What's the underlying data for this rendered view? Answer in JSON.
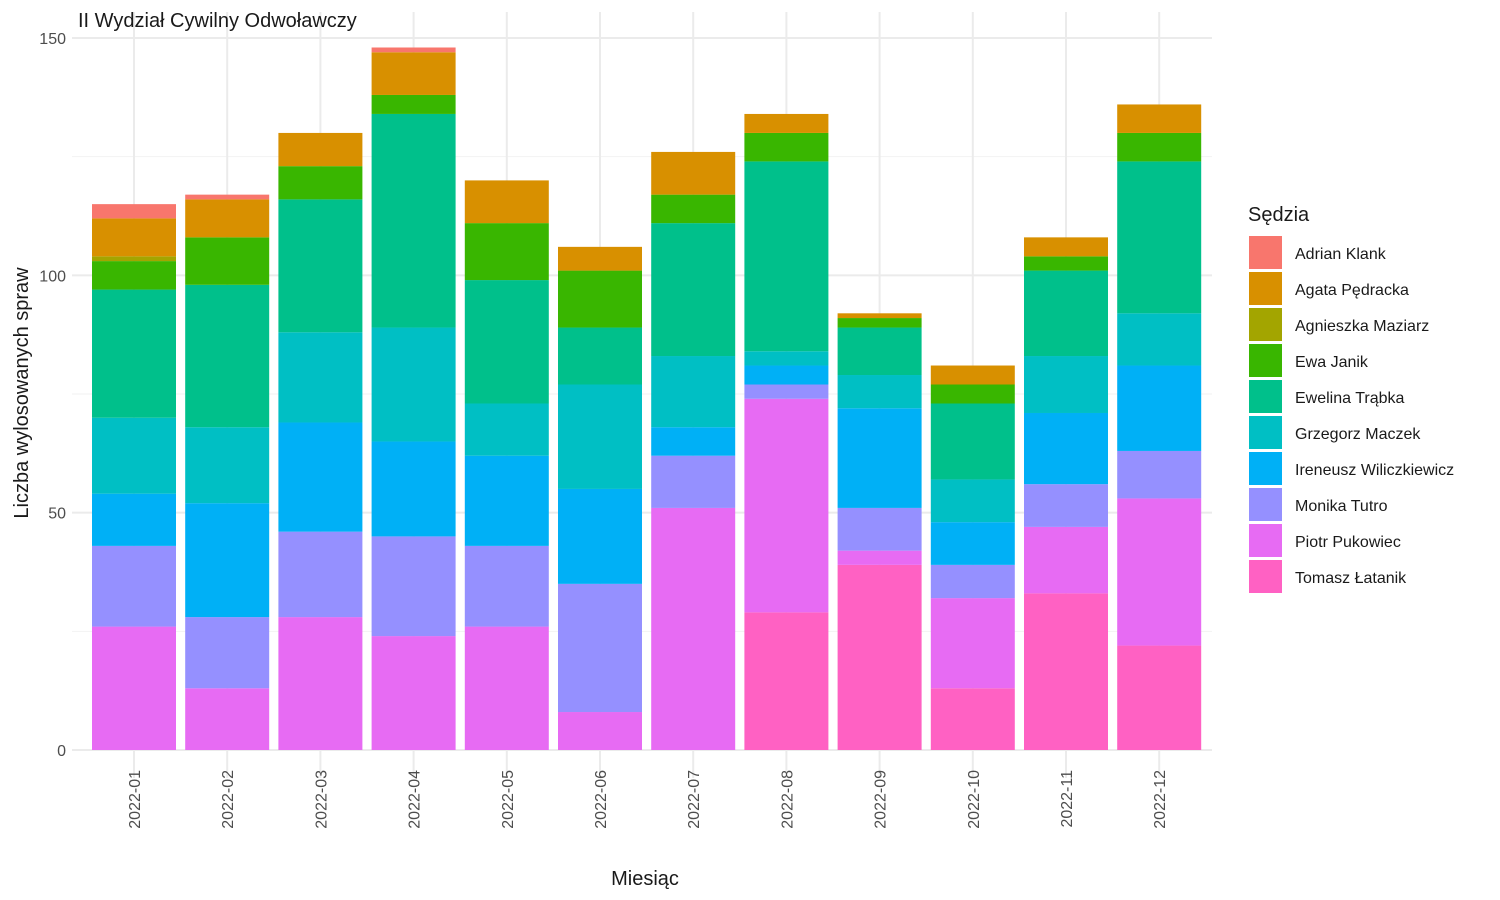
{
  "chart_data": {
    "type": "bar",
    "stacked": true,
    "title": "II Wydział Cywilny Odwoławczy",
    "xlabel": "Miesiąc",
    "ylabel": "Liczba wylosowanych spraw",
    "ylim": [
      0,
      150
    ],
    "yticks": [
      0,
      50,
      100,
      150
    ],
    "grid": true,
    "legend_title": "Sędzia",
    "legend_position": "right",
    "categories": [
      "2022-01",
      "2022-02",
      "2022-03",
      "2022-04",
      "2022-05",
      "2022-06",
      "2022-07",
      "2022-08",
      "2022-09",
      "2022-10",
      "2022-11",
      "2022-12"
    ],
    "series": [
      {
        "name": "Tomasz Łatanik",
        "color": "#FF61C3",
        "values": [
          0,
          0,
          0,
          0,
          0,
          0,
          0,
          29,
          39,
          13,
          33,
          22
        ]
      },
      {
        "name": "Piotr Pukowiec",
        "color": "#E76BF3",
        "values": [
          26,
          13,
          28,
          24,
          26,
          8,
          51,
          45,
          3,
          19,
          14,
          31
        ]
      },
      {
        "name": "Monika Tutro",
        "color": "#9590FF",
        "values": [
          17,
          15,
          18,
          21,
          17,
          27,
          11,
          3,
          9,
          7,
          9,
          10
        ]
      },
      {
        "name": "Ireneusz Wiliczkiewicz",
        "color": "#00B0F6",
        "values": [
          11,
          24,
          23,
          20,
          19,
          20,
          6,
          4,
          21,
          9,
          15,
          18
        ]
      },
      {
        "name": "Grzegorz Maczek",
        "color": "#00BFC4",
        "values": [
          16,
          16,
          19,
          24,
          11,
          22,
          15,
          3,
          7,
          9,
          12,
          11
        ]
      },
      {
        "name": "Ewelina Trąbka",
        "color": "#00C08B",
        "values": [
          27,
          30,
          28,
          45,
          26,
          12,
          28,
          40,
          10,
          16,
          18,
          32
        ]
      },
      {
        "name": "Ewa Janik",
        "color": "#39B600",
        "values": [
          6,
          10,
          7,
          4,
          12,
          12,
          6,
          6,
          2,
          4,
          3,
          6
        ]
      },
      {
        "name": "Agnieszka Maziarz",
        "color": "#A3A500",
        "values": [
          1,
          0,
          0,
          0,
          0,
          0,
          0,
          0,
          0,
          0,
          0,
          0
        ]
      },
      {
        "name": "Agata Pędracka",
        "color": "#D89000",
        "values": [
          8,
          8,
          7,
          9,
          9,
          5,
          9,
          4,
          1,
          4,
          4,
          6
        ]
      },
      {
        "name": "Adrian Klank",
        "color": "#F8766D",
        "values": [
          3,
          1,
          0,
          1,
          0,
          0,
          0,
          0,
          0,
          0,
          0,
          0
        ]
      }
    ],
    "legend_order": [
      "Adrian Klank",
      "Agata Pędracka",
      "Agnieszka Maziarz",
      "Ewa Janik",
      "Ewelina Trąbka",
      "Grzegorz Maczek",
      "Ireneusz Wiliczkiewicz",
      "Monika Tutro",
      "Piotr Pukowiec",
      "Tomasz Łatanik"
    ]
  }
}
